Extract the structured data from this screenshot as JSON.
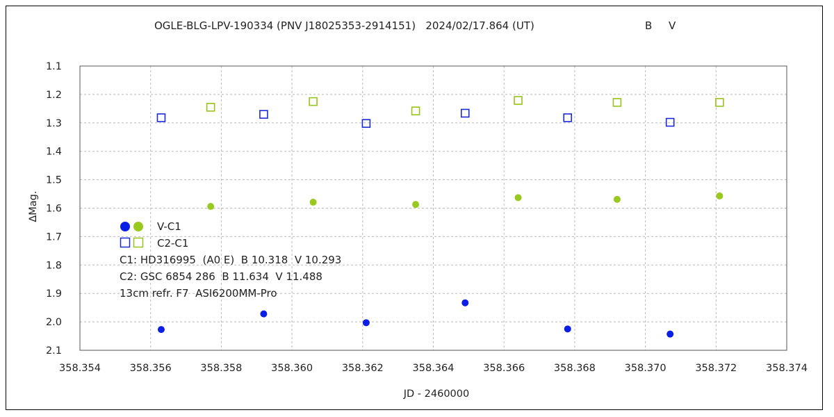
{
  "chart_data": {
    "type": "scatter",
    "title": "OGLE-BLG-LPV-190334 (PNV J18025353-2914151)   2024/02/17.864 (UT)",
    "title_bands": [
      {
        "label": "B",
        "color": "#1a1ad6"
      },
      {
        "label": "V",
        "color": "#99c21a"
      }
    ],
    "xlabel": "JD - 2460000",
    "ylabel": "∆Mag.",
    "xlim": [
      358.354,
      358.374
    ],
    "ylim": [
      1.1,
      2.1
    ],
    "y_inverted": true,
    "grid": true,
    "x_ticks": [
      "358.354",
      "358.356",
      "358.358",
      "358.360",
      "358.362",
      "358.364",
      "358.366",
      "358.368",
      "358.370",
      "358.372",
      "358.374"
    ],
    "y_ticks": [
      "1.1",
      "1.2",
      "1.3",
      "1.4",
      "1.5",
      "1.6",
      "1.7",
      "1.8",
      "1.9",
      "2.0",
      "2.1"
    ],
    "series": [
      {
        "name": "V-C1 B",
        "marker": "filled-circle",
        "color": "#0a1ee6",
        "x": [
          358.3563,
          358.3592,
          358.3621,
          358.3649,
          358.3678,
          358.3707
        ],
        "y": [
          2.027,
          1.972,
          2.003,
          1.933,
          2.025,
          2.043
        ]
      },
      {
        "name": "V-C1 V",
        "marker": "filled-circle",
        "color": "#99c91e",
        "x": [
          358.3577,
          358.3606,
          358.3635,
          358.3664,
          358.3692,
          358.3721
        ],
        "y": [
          1.594,
          1.579,
          1.587,
          1.563,
          1.569,
          1.557
        ]
      },
      {
        "name": "C2-C1 B",
        "marker": "open-square",
        "color": "#1a2ad6",
        "x": [
          358.3563,
          358.3592,
          358.3621,
          358.3649,
          358.3678,
          358.3707
        ],
        "y": [
          1.282,
          1.27,
          1.302,
          1.266,
          1.282,
          1.298
        ]
      },
      {
        "name": "C2-C1 V",
        "marker": "open-square",
        "color": "#99c21a",
        "x": [
          358.3577,
          358.3606,
          358.3635,
          358.3664,
          358.3692,
          358.3721
        ],
        "y": [
          1.245,
          1.225,
          1.258,
          1.221,
          1.228,
          1.228
        ]
      }
    ],
    "legend": [
      {
        "label": "V-C1",
        "marker": "filled-circle",
        "colors": [
          "#0a1ee6",
          "#99c91e"
        ]
      },
      {
        "label": "C2-C1",
        "marker": "open-square",
        "colors": [
          "#1a2ad6",
          "#99c21a"
        ]
      }
    ],
    "legend_placement": "lower-left",
    "notes": [
      "C1: HD316995  (A0 E)  B 10.318  V 10.293",
      "C2: GSC 6854 286  B 11.634  V 11.488",
      "13cm refr. F7  ASI6200MM-Pro"
    ]
  }
}
